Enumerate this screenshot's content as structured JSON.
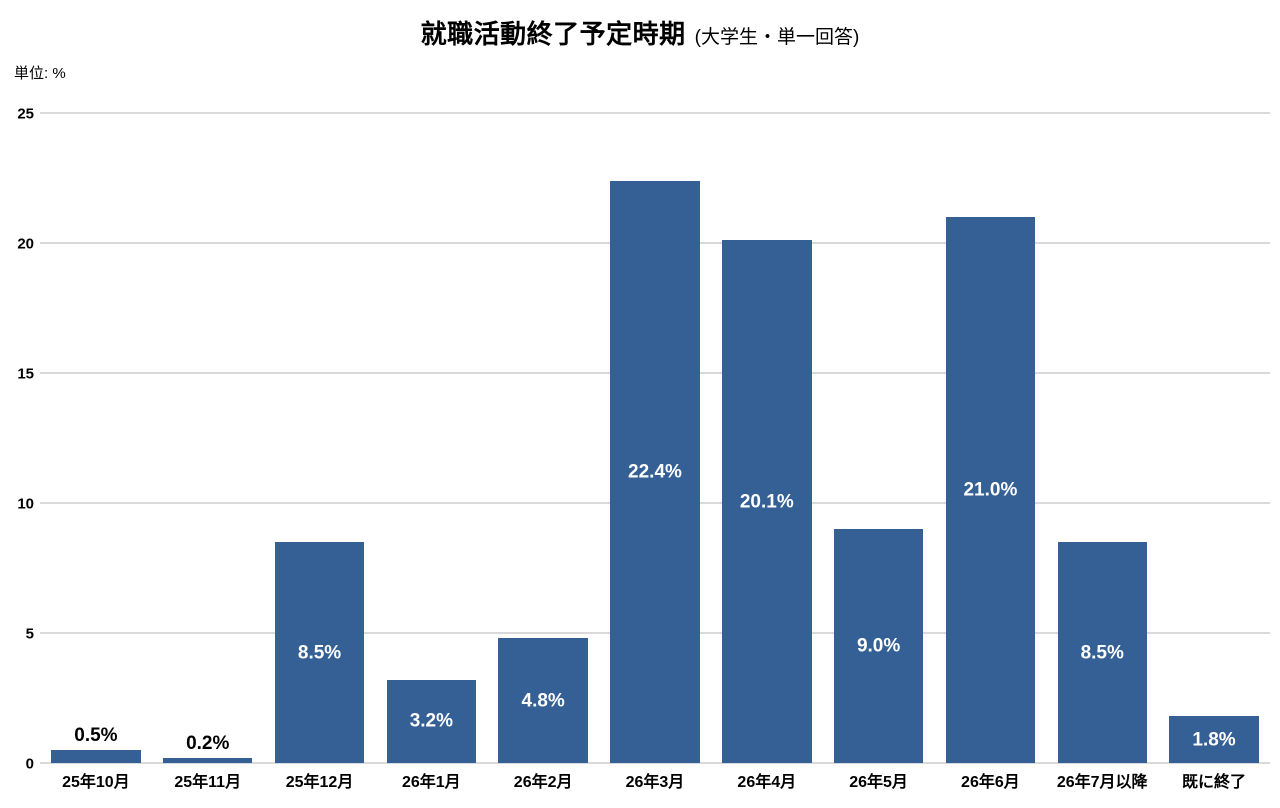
{
  "header": {
    "title": "就職活動終了予定時期",
    "subtitle": "(大学生・単一回答)",
    "unit_label": "単位: %"
  },
  "chart_data": {
    "type": "bar",
    "title": "就職活動終了予定時期 (大学生・単一回答)",
    "categories": [
      "25年10月",
      "25年11月",
      "25年12月",
      "26年1月",
      "26年2月",
      "26年3月",
      "26年4月",
      "26年5月",
      "26年6月",
      "26年7月以降",
      "既に終了"
    ],
    "values": [
      0.5,
      0.2,
      8.5,
      3.2,
      4.8,
      22.4,
      20.1,
      9.0,
      21.0,
      8.5,
      1.8
    ],
    "value_labels": [
      "0.5%",
      "0.2%",
      "8.5%",
      "3.2%",
      "4.8%",
      "22.4%",
      "20.1%",
      "9.0%",
      "21.0%",
      "8.5%",
      "1.8%"
    ],
    "xlabel": "",
    "ylabel": "単位: %",
    "ylim": [
      0,
      25
    ],
    "yticks": [
      0,
      5,
      10,
      15,
      20,
      25
    ],
    "grid": true,
    "legend": "none",
    "colors": {
      "bar": "#356095",
      "gridline": "#d9d9d9",
      "label_inside": "#ffffff",
      "label_outside": "#000000",
      "text": "#000000",
      "background": "#ffffff"
    }
  }
}
